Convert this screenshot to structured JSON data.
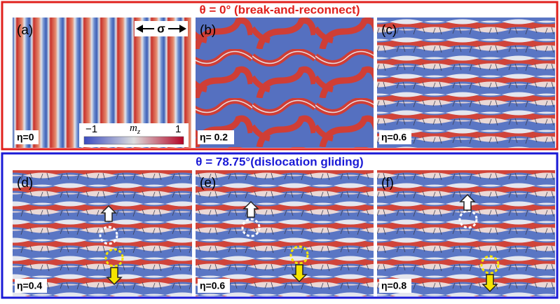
{
  "top_section": {
    "title": "θ = 0° (break-and-reconnect)",
    "panels": [
      {
        "label": "(a)",
        "eta": "η=0"
      },
      {
        "label": "(b)",
        "eta": "η= 0.2"
      },
      {
        "label": "(c)",
        "eta": "η=0.6"
      }
    ],
    "stress_label": "σ",
    "colorbar": {
      "min_label": "−1",
      "max_label": "1",
      "quantity": "m",
      "quantity_subscript": "z"
    }
  },
  "bottom_section": {
    "title": "θ = 78.75°(dislocation gliding)",
    "panels": [
      {
        "label": "(d)",
        "eta": "η=0.4"
      },
      {
        "label": "(e)",
        "eta": "η=0.6"
      },
      {
        "label": "(f)",
        "eta": "η=0.8"
      }
    ]
  }
}
